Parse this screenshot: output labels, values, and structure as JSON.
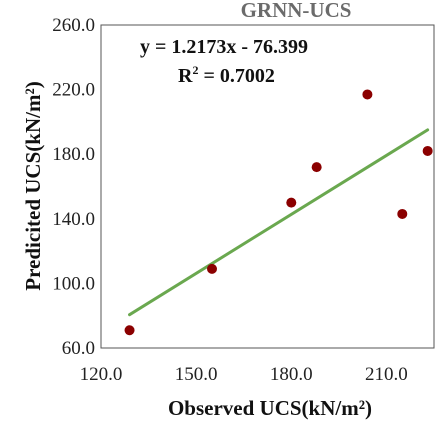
{
  "chart_data": {
    "type": "scatter",
    "title": "GRNN-UCS",
    "xlabel": "Observed UCS(kN/m²)",
    "ylabel": "Predicited UCS(kN/m²)",
    "xlim": [
      120,
      225
    ],
    "ylim": [
      60,
      260
    ],
    "x_ticks": [
      120,
      150,
      180,
      210
    ],
    "x_tick_labels": [
      "120.0",
      "150.0",
      "180.0",
      "210.0"
    ],
    "y_ticks": [
      60,
      100,
      140,
      180,
      220,
      260
    ],
    "y_tick_labels": [
      "60.0",
      "100.0",
      "140.0",
      "180.0",
      "220.0",
      "260.0"
    ],
    "grid": false,
    "legend": false,
    "series": [
      {
        "points": [
          {
            "x": 129,
            "y": 71
          },
          {
            "x": 155,
            "y": 109
          },
          {
            "x": 180,
            "y": 150
          },
          {
            "x": 188,
            "y": 172
          },
          {
            "x": 204,
            "y": 217
          },
          {
            "x": 215,
            "y": 143
          },
          {
            "x": 223,
            "y": 182
          }
        ],
        "color": "#8b0000"
      }
    ],
    "trendline": {
      "slope": 1.2173,
      "intercept": -76.399,
      "x_range": [
        129,
        223
      ],
      "color": "#6aa84f"
    },
    "annotations": {
      "equation": "y = 1.2173x - 76.399",
      "r2_label": "R",
      "r2_sup": "2",
      "r2_value": " = 0.7002"
    }
  }
}
